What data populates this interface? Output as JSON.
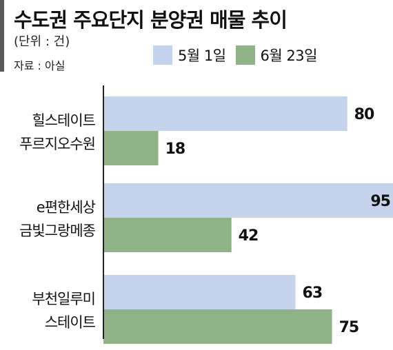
{
  "header": {
    "title": "수도권 주요단지 분양권 매물 추이",
    "unit": "(단위 : 건)",
    "source": "자료 : 아실"
  },
  "legend": [
    {
      "label": "5월 1일",
      "color": "#c5d3ec"
    },
    {
      "label": "6월 23일",
      "color": "#8fb387"
    }
  ],
  "chart_data": {
    "type": "bar",
    "orientation": "horizontal",
    "categories": [
      [
        "힐스테이트",
        "푸르지오수원"
      ],
      [
        "e편한세상",
        "금빛그랑메종"
      ],
      [
        "부천일루미",
        "스테이트"
      ]
    ],
    "series": [
      {
        "name": "5월 1일",
        "color": "#c5d3ec",
        "values": [
          80,
          95,
          63
        ]
      },
      {
        "name": "6월 23일",
        "color": "#8fb387",
        "values": [
          18,
          42,
          75
        ]
      }
    ],
    "xlim": [
      0,
      95
    ],
    "grid": false
  }
}
